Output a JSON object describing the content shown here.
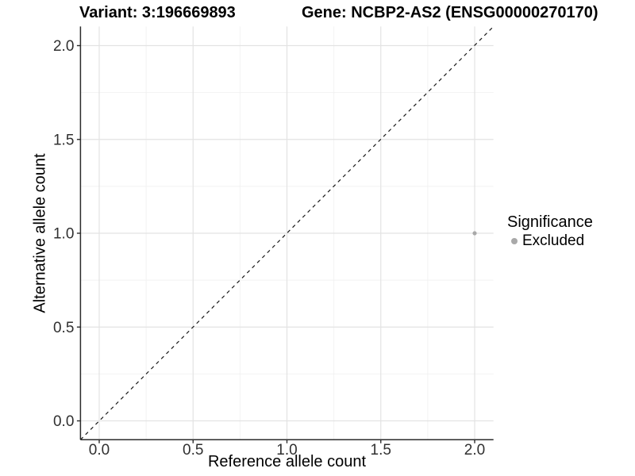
{
  "chart_data": {
    "type": "scatter",
    "title_left": "Variant: 3:196669893",
    "title_right": "Gene: NCBP2-AS2 (ENSG00000270170)",
    "xlabel": "Reference allele count",
    "ylabel": "Alternative allele count",
    "xlim": [
      -0.1,
      2.1
    ],
    "ylim": [
      -0.1,
      2.1
    ],
    "x_tick_values": [
      0,
      0.5,
      1,
      1.5,
      2
    ],
    "y_tick_values": [
      0,
      0.5,
      1,
      1.5,
      2
    ],
    "x_tick_labels": [
      "0.0",
      "0.5",
      "1.0",
      "1.5",
      "2.0"
    ],
    "y_tick_labels": [
      "0.0",
      "0.5",
      "1.0",
      "1.5",
      "2.0"
    ],
    "x_minor_tick_values": [
      0.25,
      0.75,
      1.25,
      1.75
    ],
    "y_minor_tick_values": [
      0.25,
      0.75,
      1.25,
      1.75
    ],
    "grid": "major+minor",
    "series": [
      {
        "name": "Excluded",
        "color": "#a9a9a9",
        "point_radius": 2.6,
        "points": [
          {
            "x": 2,
            "y": 1
          }
        ]
      }
    ],
    "reference_line": {
      "kind": "identity",
      "equation": "y = x",
      "style": "dashed",
      "color": "#1a1a1a"
    },
    "legend": {
      "title": "Significance",
      "position": "right",
      "entries": [
        {
          "label": "Excluded",
          "color": "#a9a9a9"
        }
      ]
    }
  },
  "colors": {
    "background": "#ffffff",
    "axis_line": "#2b2b2b",
    "tick_label": "#303030",
    "grid_major": "#e3e3e3",
    "grid_minor": "#f2f2f2"
  }
}
